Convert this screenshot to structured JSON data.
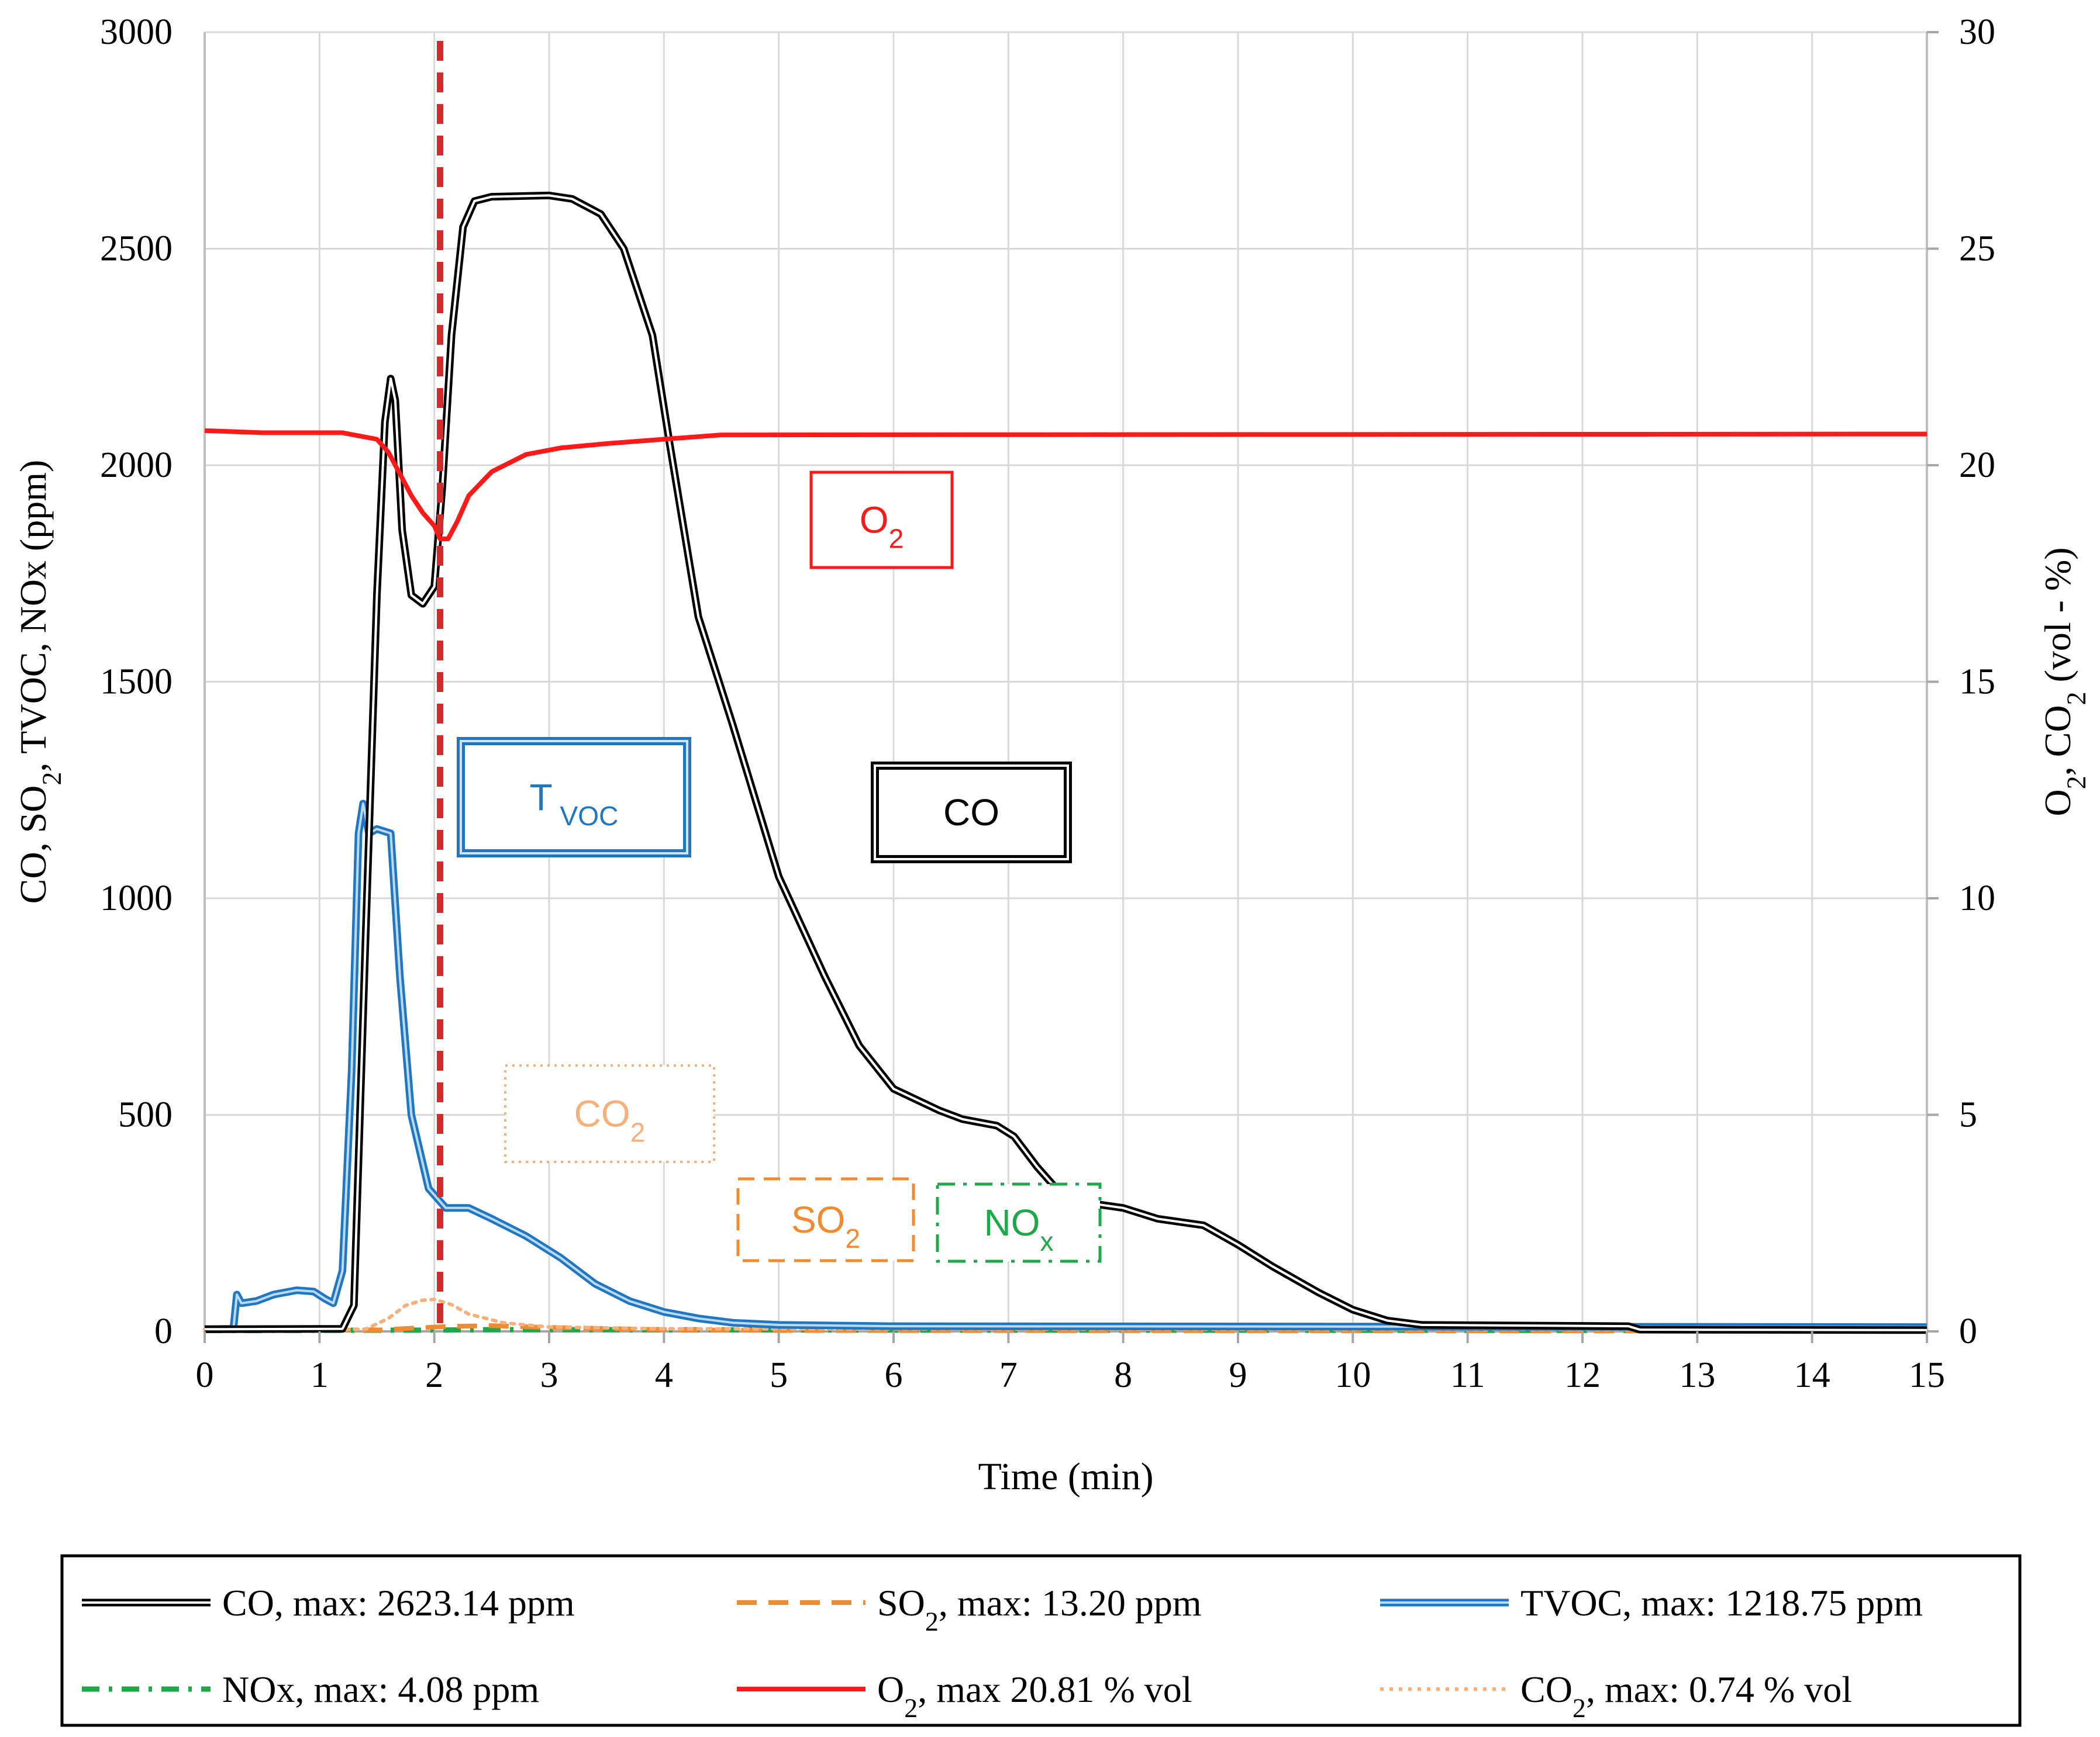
{
  "chart_data": {
    "type": "line",
    "x_axis": {
      "label": "Time (min)",
      "range": [
        0,
        15
      ],
      "ticks": [
        "0",
        "1",
        "2",
        "3",
        "4",
        "5",
        "6",
        "7",
        "8",
        "9",
        "10",
        "11",
        "12",
        "13",
        "14",
        "15"
      ]
    },
    "y_axis_left": {
      "label_parts": [
        "CO, SO",
        "2",
        ", TVOC, NOx (ppm)"
      ],
      "range": [
        0,
        3000
      ],
      "ticks": [
        "0",
        "500",
        "1000",
        "1500",
        "2000",
        "2500",
        "3000"
      ]
    },
    "y_axis_right": {
      "label_parts": [
        "O",
        "2",
        ", CO",
        "2",
        "  (vol - %)"
      ],
      "range": [
        0,
        30
      ],
      "ticks": [
        "0",
        "5",
        "10",
        "15",
        "20",
        "25",
        "30"
      ]
    },
    "grid": true,
    "marker_line": {
      "x": 2.05,
      "color": "#d42a2a",
      "style": "dashed"
    },
    "series": [
      {
        "name": "CO",
        "axis": "left",
        "color": "#000000",
        "style": "double",
        "points": [
          [
            0,
            5
          ],
          [
            1.2,
            6
          ],
          [
            1.3,
            60
          ],
          [
            1.4,
            900
          ],
          [
            1.5,
            1700
          ],
          [
            1.57,
            2100
          ],
          [
            1.62,
            2200
          ],
          [
            1.66,
            2150
          ],
          [
            1.72,
            1850
          ],
          [
            1.8,
            1700
          ],
          [
            1.9,
            1680
          ],
          [
            2.0,
            1720
          ],
          [
            2.07,
            1950
          ],
          [
            2.15,
            2300
          ],
          [
            2.25,
            2550
          ],
          [
            2.35,
            2610
          ],
          [
            2.5,
            2620
          ],
          [
            3.0,
            2623
          ],
          [
            3.2,
            2615
          ],
          [
            3.45,
            2580
          ],
          [
            3.65,
            2500
          ],
          [
            3.9,
            2300
          ],
          [
            4.05,
            2050
          ],
          [
            4.3,
            1650
          ],
          [
            4.6,
            1400
          ],
          [
            5.0,
            1050
          ],
          [
            5.4,
            820
          ],
          [
            5.7,
            660
          ],
          [
            6.0,
            560
          ],
          [
            6.4,
            510
          ],
          [
            6.6,
            490
          ],
          [
            6.9,
            475
          ],
          [
            7.05,
            450
          ],
          [
            7.25,
            380
          ],
          [
            7.45,
            320
          ],
          [
            7.6,
            300
          ],
          [
            8.0,
            285
          ],
          [
            8.3,
            260
          ],
          [
            8.7,
            245
          ],
          [
            9.0,
            200
          ],
          [
            9.3,
            150
          ],
          [
            9.7,
            90
          ],
          [
            10.0,
            50
          ],
          [
            10.3,
            25
          ],
          [
            10.6,
            15
          ],
          [
            12.4,
            12
          ],
          [
            12.5,
            4
          ],
          [
            15,
            3
          ]
        ]
      },
      {
        "name": "SO2",
        "axis": "left",
        "color": "#f28a30",
        "style": "dashed",
        "points": [
          [
            0,
            2
          ],
          [
            1.5,
            3
          ],
          [
            1.7,
            6
          ],
          [
            2.0,
            10
          ],
          [
            2.2,
            12
          ],
          [
            2.5,
            13.2
          ],
          [
            3.0,
            9
          ],
          [
            4.0,
            4
          ],
          [
            5.0,
            2
          ],
          [
            15,
            1
          ]
        ]
      },
      {
        "name": "TVOC",
        "axis": "left",
        "color": "#1f77c2",
        "style": "double",
        "points": [
          [
            0,
            5
          ],
          [
            0.25,
            6
          ],
          [
            0.28,
            85
          ],
          [
            0.32,
            65
          ],
          [
            0.45,
            70
          ],
          [
            0.6,
            85
          ],
          [
            0.8,
            95
          ],
          [
            0.95,
            92
          ],
          [
            1.05,
            75
          ],
          [
            1.12,
            65
          ],
          [
            1.2,
            140
          ],
          [
            1.28,
            600
          ],
          [
            1.34,
            1150
          ],
          [
            1.38,
            1218.75
          ],
          [
            1.43,
            1150
          ],
          [
            1.5,
            1160
          ],
          [
            1.62,
            1150
          ],
          [
            1.7,
            820
          ],
          [
            1.8,
            500
          ],
          [
            1.95,
            330
          ],
          [
            2.1,
            285
          ],
          [
            2.3,
            285
          ],
          [
            2.5,
            260
          ],
          [
            2.8,
            220
          ],
          [
            3.1,
            170
          ],
          [
            3.4,
            110
          ],
          [
            3.7,
            70
          ],
          [
            4.0,
            45
          ],
          [
            4.3,
            30
          ],
          [
            4.6,
            20
          ],
          [
            5.0,
            15
          ],
          [
            6.0,
            12
          ],
          [
            15,
            10
          ]
        ]
      },
      {
        "name": "NOx",
        "axis": "left",
        "color": "#1fa84a",
        "style": "dashdot",
        "points": [
          [
            0,
            2
          ],
          [
            2.0,
            3
          ],
          [
            2.5,
            4
          ],
          [
            3.5,
            4.08
          ],
          [
            6.0,
            3
          ],
          [
            15,
            2
          ]
        ]
      },
      {
        "name": "O2",
        "axis": "right",
        "color": "#ff1a1a",
        "style": "solid",
        "points": [
          [
            0,
            20.8
          ],
          [
            0.5,
            20.75
          ],
          [
            1.2,
            20.75
          ],
          [
            1.5,
            20.6
          ],
          [
            1.6,
            20.3
          ],
          [
            1.7,
            19.8
          ],
          [
            1.8,
            19.3
          ],
          [
            1.9,
            18.9
          ],
          [
            2.0,
            18.6
          ],
          [
            2.05,
            18.3
          ],
          [
            2.12,
            18.3
          ],
          [
            2.2,
            18.7
          ],
          [
            2.3,
            19.3
          ],
          [
            2.5,
            19.85
          ],
          [
            2.8,
            20.25
          ],
          [
            3.1,
            20.4
          ],
          [
            3.5,
            20.5
          ],
          [
            4.0,
            20.6
          ],
          [
            4.5,
            20.7
          ],
          [
            15,
            20.72
          ]
        ]
      },
      {
        "name": "CO2",
        "axis": "right",
        "color": "#f8b07a",
        "style": "dotted",
        "points": [
          [
            0,
            0.05
          ],
          [
            1.4,
            0.05
          ],
          [
            1.6,
            0.3
          ],
          [
            1.75,
            0.6
          ],
          [
            1.9,
            0.72
          ],
          [
            2.0,
            0.74
          ],
          [
            2.15,
            0.62
          ],
          [
            2.3,
            0.4
          ],
          [
            2.6,
            0.2
          ],
          [
            3.0,
            0.1
          ],
          [
            4.0,
            0.06
          ],
          [
            15,
            0.04
          ]
        ]
      }
    ],
    "annotations": [
      {
        "text": "O",
        "sub": "2",
        "color": "#ff1a1a",
        "border": "solid"
      },
      {
        "text": "T",
        "sub": "VOC",
        "color": "#1f77c2",
        "border": "double"
      },
      {
        "text": "CO",
        "sub": "",
        "color": "#000000",
        "border": "double"
      },
      {
        "text": "CO",
        "sub": "2",
        "color": "#f8b07a",
        "border": "dotted"
      },
      {
        "text": "SO",
        "sub": "2",
        "color": "#f28a30",
        "border": "dashed"
      },
      {
        "text": "NO",
        "sub": "x",
        "color": "#1fa84a",
        "border": "dashdot"
      }
    ],
    "legend": {
      "position": "bottom",
      "entries": [
        {
          "series": "CO",
          "text": "CO, max: 2623.14 ppm"
        },
        {
          "series": "SO2",
          "text_parts": [
            "SO",
            "2",
            ", max: 13.20 ppm"
          ]
        },
        {
          "series": "TVOC",
          "text": "TVOC, max: 1218.75 ppm"
        },
        {
          "series": "NOx",
          "text": "NOx, max: 4.08 ppm"
        },
        {
          "series": "O2",
          "text_parts": [
            "O",
            "2",
            ", max 20.81 % vol"
          ]
        },
        {
          "series": "CO2",
          "text_parts": [
            "CO",
            "2",
            ", max: 0.74 % vol"
          ]
        }
      ]
    }
  }
}
